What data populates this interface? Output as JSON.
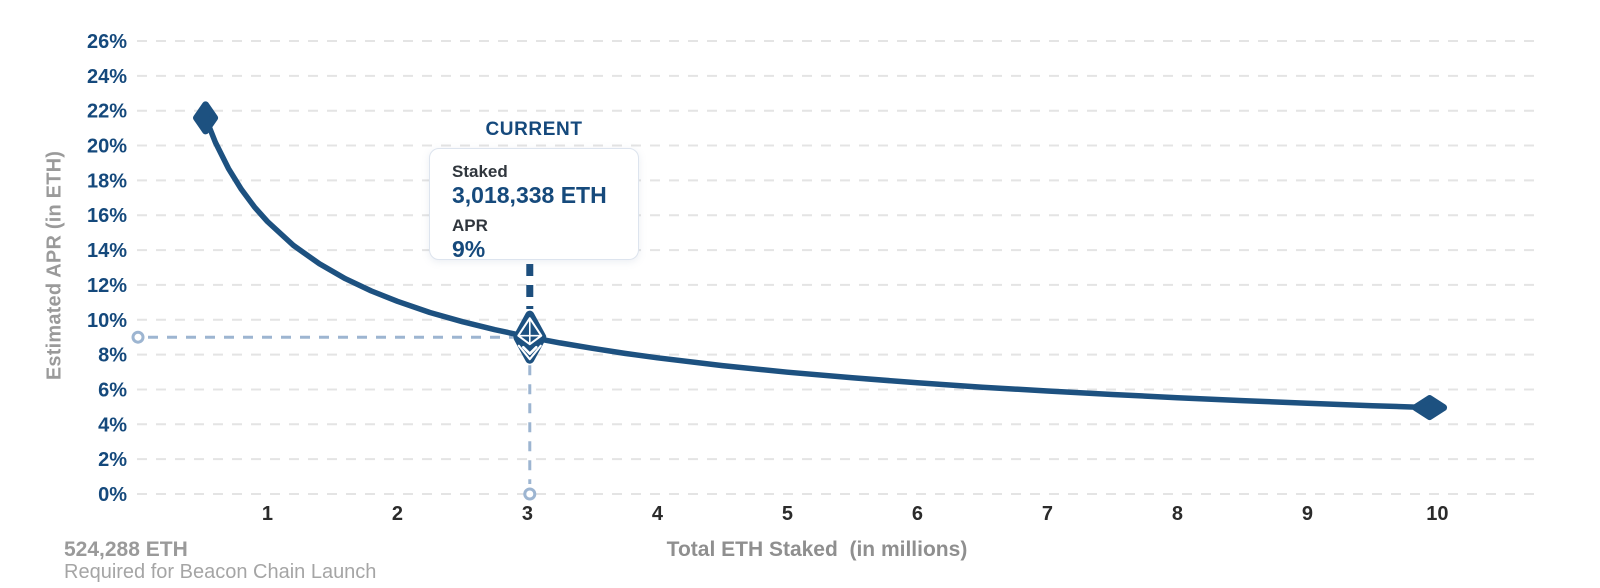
{
  "colors": {
    "accent_blue": "#15497c",
    "curve_blue": "#1d5180",
    "dark_dash_blue": "#1c4e7d",
    "light_dash_blue": "#9db5d1",
    "grid_gray": "#e4e4e4",
    "x_tick_gray": "#2b2b2b",
    "muted_gray": "#9a9a9a",
    "marker_glyph_white": "#ffffff"
  },
  "chart_data": {
    "type": "line",
    "title": "",
    "xlabel": "Total ETH Staked  (in millions)",
    "ylabel": "Estimated APR (in ETH)",
    "grid": "horizontal-dashed",
    "legend": "none",
    "xlim": [
      0,
      10.77
    ],
    "ylim": [
      0,
      26
    ],
    "x_ticks": [
      1,
      2,
      3,
      4,
      5,
      6,
      7,
      8,
      9,
      10
    ],
    "y_ticks": [
      "0%",
      "2%",
      "4%",
      "6%",
      "8%",
      "10%",
      "12%",
      "14%",
      "16%",
      "18%",
      "20%",
      "22%",
      "24%",
      "26%"
    ],
    "series": [
      {
        "name": "Estimated APR (in ETH)",
        "points": [
          [
            0.524288,
            21.59
          ],
          [
            0.6,
            20.18
          ],
          [
            0.7,
            18.69
          ],
          [
            0.8,
            17.48
          ],
          [
            0.9,
            16.48
          ],
          [
            1.0,
            15.64
          ],
          [
            1.2,
            14.27
          ],
          [
            1.4,
            13.21
          ],
          [
            1.6,
            12.36
          ],
          [
            1.8,
            11.65
          ],
          [
            2.0,
            11.06
          ],
          [
            2.25,
            10.42
          ],
          [
            2.5,
            9.89
          ],
          [
            2.75,
            9.43
          ],
          [
            3.018338,
            9.0
          ],
          [
            3.25,
            8.67
          ],
          [
            3.5,
            8.36
          ],
          [
            3.75,
            8.07
          ],
          [
            4.0,
            7.82
          ],
          [
            4.5,
            7.37
          ],
          [
            5.0,
            6.99
          ],
          [
            5.5,
            6.67
          ],
          [
            6.0,
            6.38
          ],
          [
            6.5,
            6.13
          ],
          [
            7.0,
            5.91
          ],
          [
            7.5,
            5.71
          ],
          [
            8.0,
            5.53
          ],
          [
            8.5,
            5.36
          ],
          [
            9.0,
            5.21
          ],
          [
            9.5,
            5.07
          ],
          [
            9.94,
            4.96
          ]
        ]
      }
    ],
    "endpoint_markers": [
      {
        "x": 0.524288,
        "apr_pct": 21.59,
        "orientation": "tall"
      },
      {
        "x": 9.94,
        "apr_pct": 4.96,
        "orientation": "wide"
      }
    ],
    "current_point": {
      "x_millions": 3.018338,
      "apr_pct": 9
    }
  },
  "tooltip": {
    "heading": "CURRENT",
    "staked_label": "Staked",
    "staked_value": "3,018,338 ETH",
    "apr_label": "APR",
    "apr_value": "9%"
  },
  "footnote": {
    "value": "524,288 ETH",
    "caption": "Required for Beacon Chain Launch"
  }
}
